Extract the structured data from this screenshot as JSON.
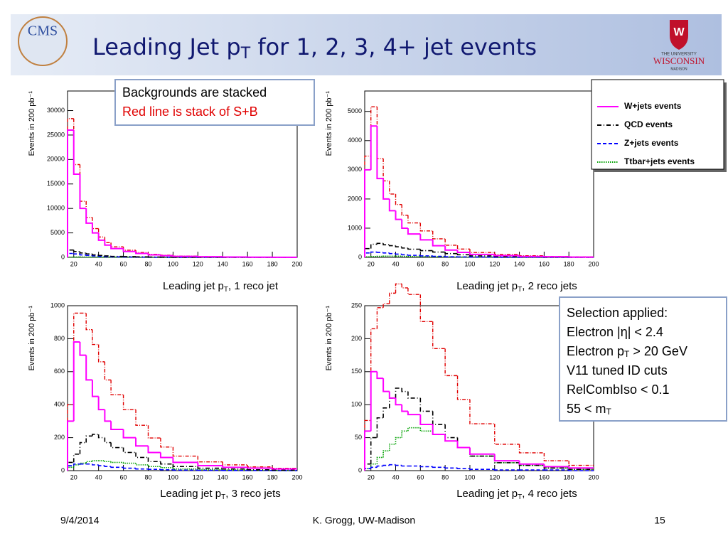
{
  "header": {
    "title": [
      "Leading Jet p",
      "T",
      " for 1, 2, 3, 4+ jet events"
    ],
    "logo_left": "CMS",
    "logo_right": [
      "THE UNIVERSITY",
      "WISCONSIN",
      "MADISON"
    ]
  },
  "note": [
    "Backgrounds are stacked",
    "Red line is stack of S+B"
  ],
  "selection": [
    [
      "Selection applied:"
    ],
    [
      "Electron |η| < 2.4"
    ],
    [
      "Electron p",
      "T",
      " > 20 GeV"
    ],
    [
      "V11 tuned ID cuts"
    ],
    [
      "RelCombIso < 0.1"
    ],
    [
      "55 < m",
      "T"
    ]
  ],
  "footer": {
    "date": "9/4/2014",
    "author": "K. Grogg, UW-Madison",
    "page": "15"
  },
  "chart_data": [
    {
      "type": "histogram",
      "ylabel": "Events in 200 pb⁻¹",
      "xlabel": [
        "Leading jet p",
        "T",
        ", 1 reco jet"
      ],
      "bins": [
        15,
        20,
        25,
        30,
        35,
        40,
        45,
        50,
        60,
        70,
        80,
        90,
        100,
        120,
        140,
        160,
        180,
        200
      ],
      "xlim": [
        15,
        200
      ],
      "xticks": [
        20,
        40,
        60,
        80,
        100,
        120,
        140,
        160,
        180,
        200
      ],
      "ylim": [
        0,
        34000
      ],
      "yticks": [
        0,
        5000,
        10000,
        15000,
        20000,
        25000,
        30000
      ],
      "series": [
        {
          "name": "W+jets events",
          "color": "#ff00ff",
          "values": [
            26000,
            17000,
            10000,
            7000,
            5000,
            3500,
            2500,
            1800,
            1200,
            800,
            500,
            350,
            200,
            120,
            70,
            40,
            20
          ]
        },
        {
          "name": "QCD events",
          "color": "#000000",
          "values": [
            1500,
            1200,
            900,
            700,
            500,
            400,
            300,
            200,
            150,
            100,
            70,
            50,
            30,
            20,
            10,
            5,
            3
          ]
        },
        {
          "name": "Z+jets events",
          "color": "#0000ff",
          "values": [
            800,
            700,
            500,
            400,
            300,
            200,
            150,
            100,
            70,
            50,
            30,
            20,
            15,
            10,
            5,
            3,
            2
          ]
        },
        {
          "name": "Ttbar+jets events",
          "color": "#00a000",
          "values": [
            50,
            60,
            70,
            70,
            70,
            60,
            60,
            50,
            40,
            30,
            20,
            15,
            10,
            5,
            3,
            2,
            1
          ]
        }
      ],
      "stack_color": "#e00000"
    },
    {
      "type": "histogram",
      "ylabel": "Events in 200 pb⁻¹",
      "xlabel": [
        "Leading jet p",
        "T",
        ", 2 reco jets"
      ],
      "bins": [
        15,
        20,
        25,
        30,
        35,
        40,
        45,
        50,
        60,
        70,
        80,
        90,
        100,
        120,
        140,
        160,
        180,
        200
      ],
      "xlim": [
        15,
        200
      ],
      "xticks": [
        20,
        40,
        60,
        80,
        100,
        120,
        140,
        160,
        180,
        200
      ],
      "ylim": [
        0,
        5700
      ],
      "yticks": [
        0,
        1000,
        2000,
        3000,
        4000,
        5000
      ],
      "series": [
        {
          "name": "W+jets events",
          "color": "#ff00ff",
          "values": [
            3000,
            4500,
            2700,
            2000,
            1600,
            1300,
            1000,
            800,
            600,
            400,
            250,
            170,
            100,
            60,
            30,
            20,
            10
          ]
        },
        {
          "name": "QCD events",
          "color": "#000000",
          "values": [
            300,
            450,
            480,
            430,
            400,
            360,
            320,
            280,
            230,
            180,
            130,
            90,
            50,
            30,
            20,
            10,
            5
          ]
        },
        {
          "name": "Z+jets events",
          "color": "#0000ff",
          "values": [
            150,
            180,
            170,
            150,
            130,
            110,
            90,
            70,
            50,
            35,
            20,
            15,
            10,
            5,
            3,
            2,
            1
          ]
        },
        {
          "name": "Ttbar+jets events",
          "color": "#00a000",
          "values": [
            20,
            30,
            35,
            40,
            40,
            40,
            35,
            30,
            25,
            20,
            15,
            10,
            7,
            4,
            2,
            1,
            1
          ]
        }
      ],
      "stack_color": "#e00000"
    },
    {
      "type": "histogram",
      "ylabel": "Events in 200 pb⁻¹",
      "xlabel": [
        "Leading jet p",
        "T",
        ", 3 reco jets"
      ],
      "bins": [
        15,
        20,
        25,
        30,
        35,
        40,
        45,
        50,
        60,
        70,
        80,
        90,
        100,
        120,
        140,
        160,
        180,
        200
      ],
      "xlim": [
        15,
        200
      ],
      "xticks": [
        20,
        40,
        60,
        80,
        100,
        120,
        140,
        160,
        180,
        200
      ],
      "ylim": [
        0,
        1000
      ],
      "yticks": [
        0,
        200,
        400,
        600,
        800,
        1000
      ],
      "series": [
        {
          "name": "W+jets events",
          "color": "#ff00ff",
          "values": [
            300,
            780,
            700,
            550,
            450,
            370,
            300,
            250,
            200,
            150,
            110,
            80,
            50,
            30,
            20,
            15,
            10
          ]
        },
        {
          "name": "QCD events",
          "color": "#000000",
          "values": [
            50,
            100,
            170,
            210,
            220,
            200,
            170,
            140,
            110,
            80,
            55,
            40,
            25,
            15,
            10,
            5,
            3
          ]
        },
        {
          "name": "Z+jets events",
          "color": "#0000ff",
          "values": [
            30,
            40,
            40,
            40,
            35,
            30,
            25,
            20,
            15,
            10,
            8,
            5,
            3,
            2,
            1,
            1,
            0
          ]
        },
        {
          "name": "Ttbar+jets events",
          "color": "#00a000",
          "values": [
            20,
            35,
            45,
            55,
            60,
            60,
            55,
            50,
            45,
            35,
            25,
            18,
            10,
            6,
            4,
            2,
            1
          ]
        }
      ],
      "stack_color": "#e00000"
    },
    {
      "type": "histogram",
      "ylabel": "Events in 200 pb⁻¹",
      "xlabel": [
        "Leading jet p",
        "T",
        ", 4 reco jets"
      ],
      "bins": [
        15,
        20,
        25,
        30,
        35,
        40,
        45,
        50,
        60,
        70,
        80,
        90,
        100,
        120,
        140,
        160,
        180,
        200
      ],
      "xlim": [
        15,
        200
      ],
      "xticks": [
        20,
        40,
        60,
        80,
        100,
        120,
        140,
        160,
        180,
        200
      ],
      "ylim": [
        0,
        250
      ],
      "yticks": [
        0,
        50,
        100,
        150,
        200,
        250
      ],
      "series": [
        {
          "name": "W+jets events",
          "color": "#ff00ff",
          "values": [
            60,
            150,
            140,
            120,
            110,
            100,
            90,
            85,
            70,
            55,
            45,
            35,
            25,
            15,
            10,
            6,
            4
          ]
        },
        {
          "name": "QCD events",
          "color": "#000000",
          "values": [
            10,
            50,
            80,
            95,
            110,
            125,
            120,
            110,
            90,
            70,
            50,
            35,
            22,
            12,
            8,
            4,
            2
          ]
        },
        {
          "name": "Z+jets events",
          "color": "#0000ff",
          "values": [
            3,
            5,
            7,
            8,
            9,
            8,
            7,
            7,
            6,
            5,
            4,
            3,
            2,
            1,
            1,
            1,
            0
          ]
        },
        {
          "name": "Ttbar+jets events",
          "color": "#00a000",
          "values": [
            3,
            10,
            20,
            30,
            40,
            50,
            60,
            65,
            60,
            55,
            45,
            35,
            22,
            12,
            8,
            4,
            2
          ]
        }
      ],
      "stack_color": "#e00000"
    }
  ]
}
